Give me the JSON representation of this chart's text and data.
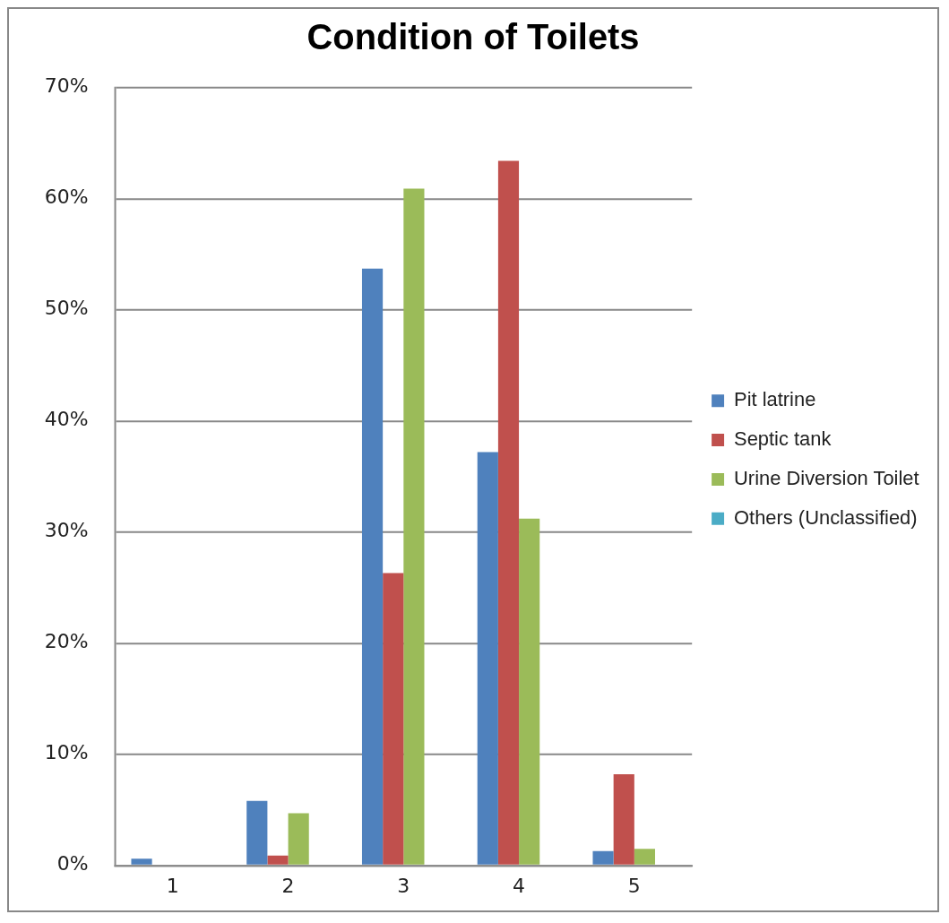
{
  "chart_data": {
    "type": "bar",
    "title": "Condition of Toilets",
    "categories": [
      "1",
      "2",
      "3",
      "4",
      "5"
    ],
    "series": [
      {
        "name": "Pit latrine",
        "color": "#4f81bd",
        "values": [
          0.6,
          5.8,
          53.7,
          37.2,
          1.3
        ]
      },
      {
        "name": "Septic tank",
        "color": "#c0504d",
        "values": [
          0,
          0.9,
          26.3,
          63.4,
          8.2
        ]
      },
      {
        "name": "Urine Diversion Toilet",
        "color": "#9bbb59",
        "values": [
          0,
          4.7,
          60.9,
          31.2,
          1.5
        ]
      },
      {
        "name": "Others (Unclassified)",
        "color": "#4bacc6",
        "values": [
          0,
          0,
          0,
          0,
          0
        ]
      }
    ],
    "ylim": [
      0,
      70
    ],
    "yticks": [
      {
        "value": 0,
        "label": "0%"
      },
      {
        "value": 10,
        "label": "10%"
      },
      {
        "value": 20,
        "label": "20%"
      },
      {
        "value": 30,
        "label": "30%"
      },
      {
        "value": 40,
        "label": "40%"
      },
      {
        "value": 50,
        "label": "50%"
      },
      {
        "value": 60,
        "label": "60%"
      },
      {
        "value": 70,
        "label": "70%"
      }
    ],
    "grid": "y",
    "legend": "right"
  }
}
